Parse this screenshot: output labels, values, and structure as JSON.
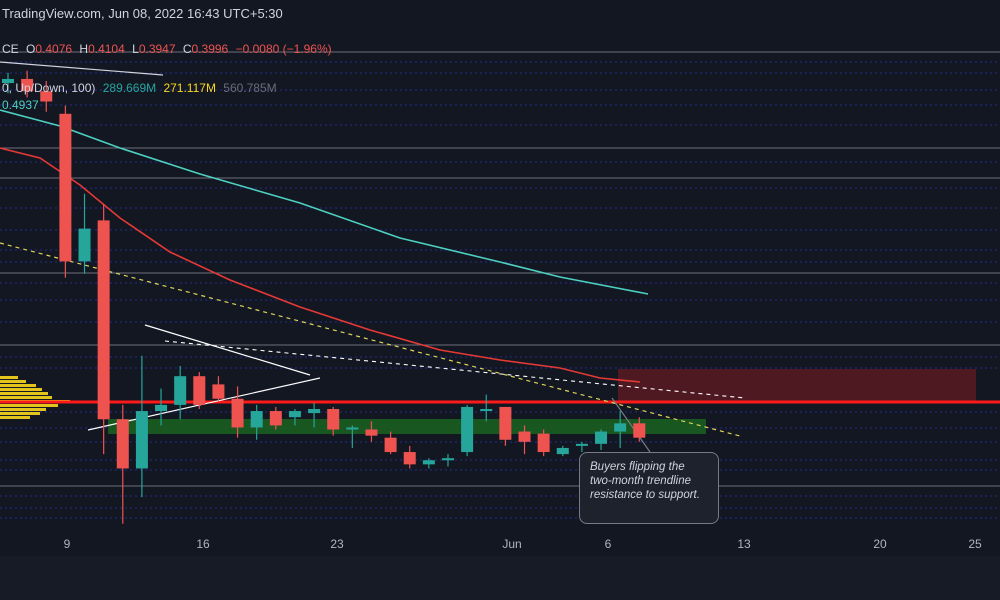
{
  "header": {
    "source_line": "TradingView.com, Jun 08, 2022 16:43 UTC+5:30",
    "ohlc_prefix": "CE",
    "o_label": "O",
    "o_value": "0.4076",
    "h_label": "H",
    "h_value": "0.4104",
    "l_label": "L",
    "l_value": "0.3947",
    "c_label": "C",
    "c_value": "0.3996",
    "change": "−0.0080 (−1.96%)",
    "volume_profile_label": "0, Up/Down, 100)",
    "vp_up": "289.669M",
    "vp_down": "271.117M",
    "vp_total": "560.785M",
    "ma_value": "0.4937"
  },
  "annotation": {
    "text": "Buyers flipping the two-month trendline resistance to support."
  },
  "colors": {
    "background": "#131722",
    "up": "#26a69a",
    "down": "#ef5350",
    "ma_red": "#e53935",
    "ma_teal": "#4dd0c1",
    "support_zone": "#1b5e20",
    "resistance_zone": "#5b1a22",
    "volume_profile": "#f9d71c"
  },
  "chart_data": {
    "type": "candlestick",
    "x_ticks": [
      "9",
      "16",
      "23",
      "Jun",
      "6",
      "13",
      "20",
      "25"
    ],
    "candles": [
      {
        "o": 0.539,
        "h": 0.544,
        "l": 0.534,
        "c": 0.541
      },
      {
        "o": 0.541,
        "h": 0.545,
        "l": 0.532,
        "c": 0.535
      },
      {
        "o": 0.535,
        "h": 0.54,
        "l": 0.525,
        "c": 0.53
      },
      {
        "o": 0.524,
        "h": 0.528,
        "l": 0.444,
        "c": 0.452
      },
      {
        "o": 0.452,
        "h": 0.485,
        "l": 0.446,
        "c": 0.468
      },
      {
        "o": 0.472,
        "h": 0.48,
        "l": 0.358,
        "c": 0.375
      },
      {
        "o": 0.375,
        "h": 0.382,
        "l": 0.324,
        "c": 0.351
      },
      {
        "o": 0.351,
        "h": 0.406,
        "l": 0.337,
        "c": 0.379
      },
      {
        "o": 0.379,
        "h": 0.39,
        "l": 0.372,
        "c": 0.382
      },
      {
        "o": 0.382,
        "h": 0.401,
        "l": 0.375,
        "c": 0.396
      },
      {
        "o": 0.396,
        "h": 0.398,
        "l": 0.38,
        "c": 0.382
      },
      {
        "o": 0.392,
        "h": 0.396,
        "l": 0.384,
        "c": 0.385
      },
      {
        "o": 0.385,
        "h": 0.391,
        "l": 0.366,
        "c": 0.371
      },
      {
        "o": 0.371,
        "h": 0.382,
        "l": 0.365,
        "c": 0.379
      },
      {
        "o": 0.379,
        "h": 0.381,
        "l": 0.37,
        "c": 0.372
      },
      {
        "o": 0.376,
        "h": 0.38,
        "l": 0.372,
        "c": 0.379
      },
      {
        "o": 0.378,
        "h": 0.383,
        "l": 0.371,
        "c": 0.38
      },
      {
        "o": 0.38,
        "h": 0.381,
        "l": 0.367,
        "c": 0.37
      },
      {
        "o": 0.37,
        "h": 0.372,
        "l": 0.361,
        "c": 0.371
      },
      {
        "o": 0.37,
        "h": 0.374,
        "l": 0.364,
        "c": 0.367
      },
      {
        "o": 0.366,
        "h": 0.369,
        "l": 0.358,
        "c": 0.359
      },
      {
        "o": 0.359,
        "h": 0.362,
        "l": 0.351,
        "c": 0.353
      },
      {
        "o": 0.353,
        "h": 0.356,
        "l": 0.351,
        "c": 0.355
      },
      {
        "o": 0.355,
        "h": 0.358,
        "l": 0.352,
        "c": 0.356
      },
      {
        "o": 0.359,
        "h": 0.382,
        "l": 0.357,
        "c": 0.381
      },
      {
        "o": 0.379,
        "h": 0.387,
        "l": 0.374,
        "c": 0.38
      },
      {
        "o": 0.381,
        "h": 0.381,
        "l": 0.362,
        "c": 0.365
      },
      {
        "o": 0.369,
        "h": 0.372,
        "l": 0.358,
        "c": 0.364
      },
      {
        "o": 0.368,
        "h": 0.37,
        "l": 0.357,
        "c": 0.359
      },
      {
        "o": 0.358,
        "h": 0.362,
        "l": 0.357,
        "c": 0.361
      },
      {
        "o": 0.362,
        "h": 0.364,
        "l": 0.359,
        "c": 0.363
      },
      {
        "o": 0.363,
        "h": 0.37,
        "l": 0.36,
        "c": 0.369
      },
      {
        "o": 0.369,
        "h": 0.379,
        "l": 0.361,
        "c": 0.373
      },
      {
        "o": 0.373,
        "h": 0.376,
        "l": 0.364,
        "c": 0.366
      }
    ]
  }
}
